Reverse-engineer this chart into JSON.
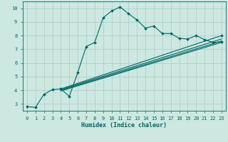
{
  "xlabel": "Humidex (Indice chaleur)",
  "bg_color": "#cce8e0",
  "grid_color": "#aacccc",
  "line_color": "#006666",
  "xlim": [
    -0.5,
    23.5
  ],
  "ylim": [
    2.5,
    10.5
  ],
  "xtick_labels": [
    "0",
    "1",
    "2",
    "3",
    "4",
    "5",
    "6",
    "7",
    "8",
    "9",
    "10",
    "11",
    "12",
    "13",
    "14",
    "15",
    "16",
    "17",
    "18",
    "19",
    "20",
    "21",
    "22",
    "23"
  ],
  "xticks": [
    0,
    1,
    2,
    3,
    4,
    5,
    6,
    7,
    8,
    9,
    10,
    11,
    12,
    13,
    14,
    15,
    16,
    17,
    18,
    19,
    20,
    21,
    22,
    23
  ],
  "yticks": [
    3,
    4,
    5,
    6,
    7,
    8,
    9,
    10
  ],
  "lines": [
    {
      "x": [
        0,
        1,
        2,
        3,
        4,
        5,
        6,
        7,
        8,
        9,
        10,
        11,
        12,
        13,
        14,
        15,
        16,
        17,
        18,
        19,
        20,
        21,
        22,
        23
      ],
      "y": [
        2.8,
        2.75,
        3.7,
        4.05,
        4.1,
        3.55,
        5.3,
        7.2,
        7.5,
        9.3,
        9.8,
        10.1,
        9.6,
        9.15,
        8.55,
        8.7,
        8.15,
        8.15,
        7.8,
        7.75,
        8.0,
        7.7,
        7.5,
        7.55
      ],
      "marker": true
    },
    {
      "x": [
        4,
        23
      ],
      "y": [
        4.1,
        8.0
      ],
      "marker": true
    },
    {
      "x": [
        4,
        23
      ],
      "y": [
        4.05,
        7.75
      ],
      "marker": false
    },
    {
      "x": [
        4,
        23
      ],
      "y": [
        4.0,
        7.6
      ],
      "marker": false
    },
    {
      "x": [
        4,
        23
      ],
      "y": [
        3.95,
        7.5
      ],
      "marker": false
    }
  ]
}
